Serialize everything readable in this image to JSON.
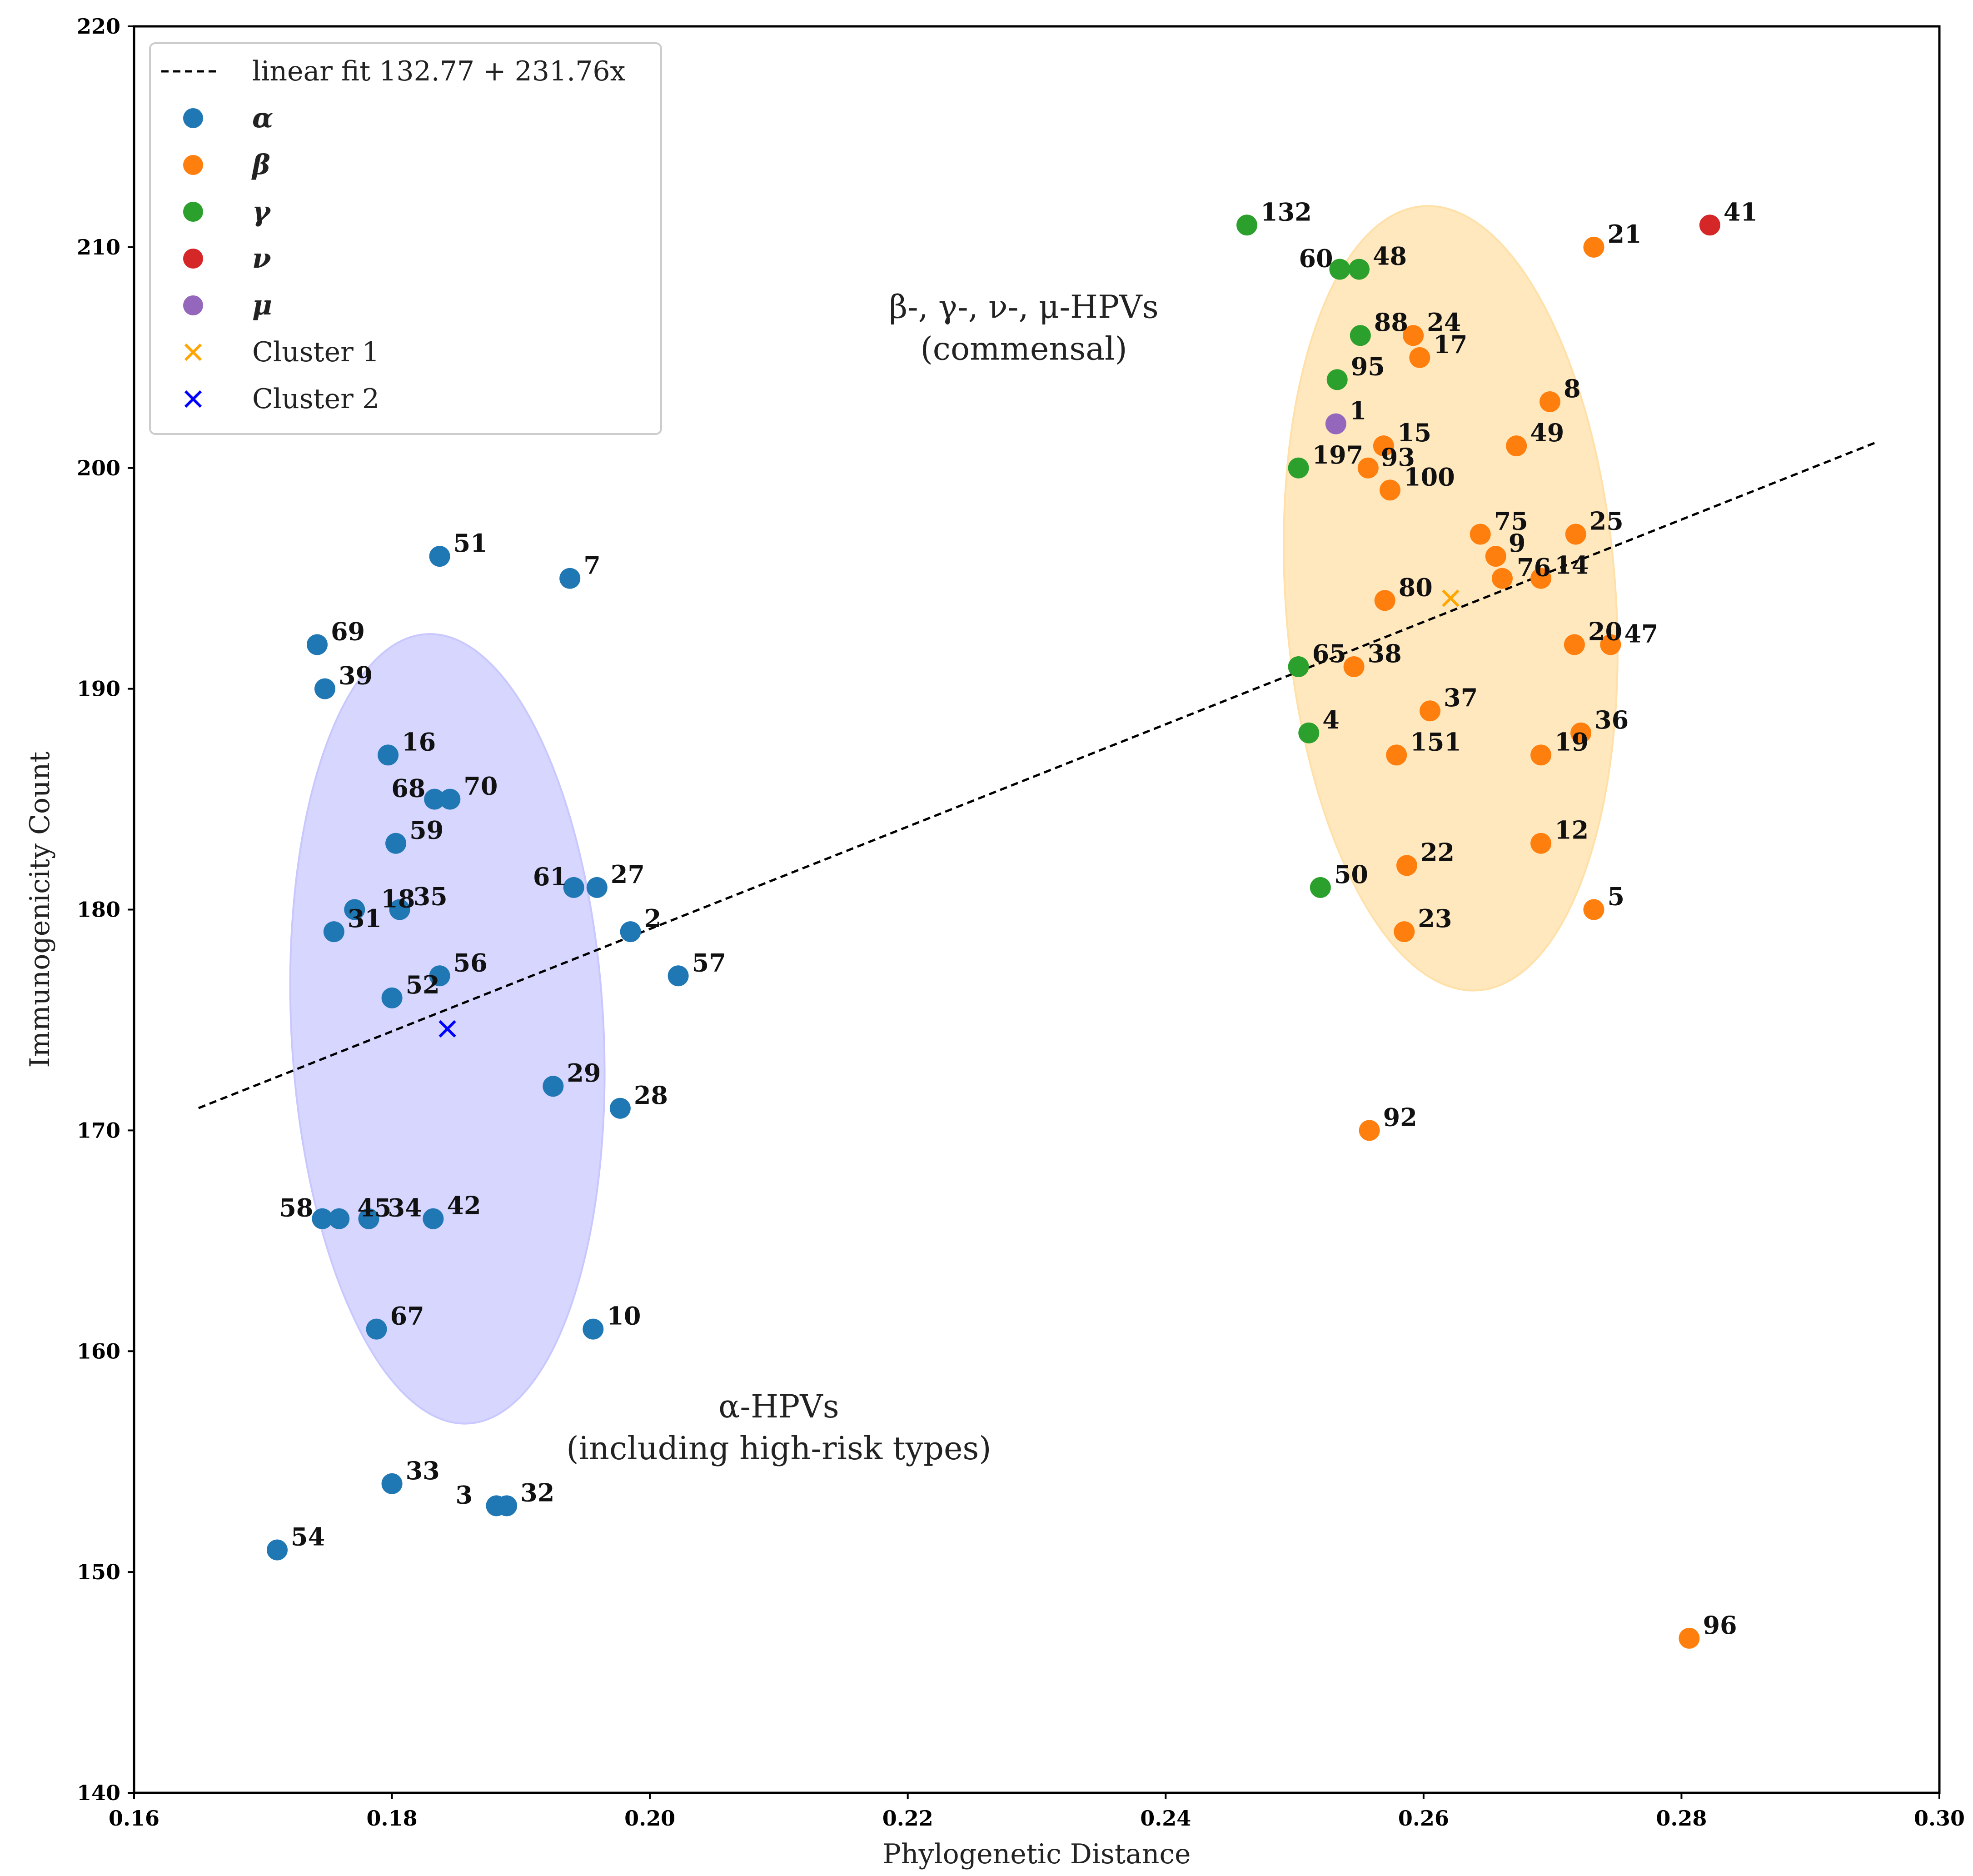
{
  "chart_data": {
    "type": "scatter",
    "xlabel": "Phylogenetic Distance",
    "ylabel": "Immunogenicity Count",
    "xlim": [
      0.16,
      0.3
    ],
    "ylim": [
      140,
      220
    ],
    "xticks": [
      "0.16",
      "0.18",
      "0.20",
      "0.22",
      "0.24",
      "0.26",
      "0.28",
      "0.30"
    ],
    "yticks": [
      "140",
      "150",
      "160",
      "170",
      "180",
      "190",
      "200",
      "210",
      "220"
    ],
    "fit_line": {
      "label": "linear fit 132.77 + 231.76x",
      "intercept": 132.77,
      "slope": 231.76,
      "x_range": [
        0.165,
        0.295
      ],
      "color": "#000000"
    },
    "series": [
      {
        "name": "α",
        "color": "#1f77b4",
        "points": [
          {
            "label": "51",
            "x": 0.1837,
            "y": 196
          },
          {
            "label": "7",
            "x": 0.1938,
            "y": 195
          },
          {
            "label": "69",
            "x": 0.1742,
            "y": 192
          },
          {
            "label": "39",
            "x": 0.1748,
            "y": 190
          },
          {
            "label": "16",
            "x": 0.1797,
            "y": 187
          },
          {
            "label": "68",
            "x": 0.1833,
            "y": 185
          },
          {
            "label": "70",
            "x": 0.1845,
            "y": 185
          },
          {
            "label": "59",
            "x": 0.1803,
            "y": 183
          },
          {
            "label": "61",
            "x": 0.1941,
            "y": 181
          },
          {
            "label": "27",
            "x": 0.1959,
            "y": 181
          },
          {
            "label": "18",
            "x": 0.1771,
            "y": 180
          },
          {
            "label": "35",
            "x": 0.1806,
            "y": 180
          },
          {
            "label": "31",
            "x": 0.1755,
            "y": 179
          },
          {
            "label": "2",
            "x": 0.1985,
            "y": 179
          },
          {
            "label": "56",
            "x": 0.1837,
            "y": 177
          },
          {
            "label": "57",
            "x": 0.2022,
            "y": 177
          },
          {
            "label": "52",
            "x": 0.18,
            "y": 176
          },
          {
            "label": "29",
            "x": 0.1925,
            "y": 172
          },
          {
            "label": "28",
            "x": 0.1977,
            "y": 171
          },
          {
            "label": "58",
            "x": 0.1746,
            "y": 166
          },
          {
            "label": "45",
            "x": 0.1759,
            "y": 166
          },
          {
            "label": "34",
            "x": 0.1782,
            "y": 166
          },
          {
            "label": "42",
            "x": 0.1832,
            "y": 166
          },
          {
            "label": "67",
            "x": 0.1788,
            "y": 161
          },
          {
            "label": "10",
            "x": 0.1956,
            "y": 161
          },
          {
            "label": "33",
            "x": 0.18,
            "y": 154
          },
          {
            "label": "3",
            "x": 0.1881,
            "y": 153
          },
          {
            "label": "32",
            "x": 0.1889,
            "y": 153
          },
          {
            "label": "54",
            "x": 0.1711,
            "y": 151
          }
        ]
      },
      {
        "name": "β",
        "color": "#ff7f0e",
        "points": [
          {
            "label": "21",
            "x": 0.2732,
            "y": 210
          },
          {
            "label": "24",
            "x": 0.2592,
            "y": 206
          },
          {
            "label": "17",
            "x": 0.2597,
            "y": 205
          },
          {
            "label": "8",
            "x": 0.2698,
            "y": 203
          },
          {
            "label": "49",
            "x": 0.2672,
            "y": 201
          },
          {
            "label": "15",
            "x": 0.2569,
            "y": 201
          },
          {
            "label": "93",
            "x": 0.2557,
            "y": 200
          },
          {
            "label": "100",
            "x": 0.2574,
            "y": 199
          },
          {
            "label": "75",
            "x": 0.2644,
            "y": 197
          },
          {
            "label": "25",
            "x": 0.2718,
            "y": 197
          },
          {
            "label": "9",
            "x": 0.2656,
            "y": 196
          },
          {
            "label": "76",
            "x": 0.2661,
            "y": 195
          },
          {
            "label": "14",
            "x": 0.2691,
            "y": 195
          },
          {
            "label": "80",
            "x": 0.257,
            "y": 194
          },
          {
            "label": "20",
            "x": 0.2717,
            "y": 192
          },
          {
            "label": "47",
            "x": 0.2745,
            "y": 192
          },
          {
            "label": "38",
            "x": 0.2546,
            "y": 191
          },
          {
            "label": "37",
            "x": 0.2605,
            "y": 189
          },
          {
            "label": "36",
            "x": 0.2722,
            "y": 188
          },
          {
            "label": "151",
            "x": 0.2579,
            "y": 187
          },
          {
            "label": "19",
            "x": 0.2691,
            "y": 187
          },
          {
            "label": "12",
            "x": 0.2691,
            "y": 183
          },
          {
            "label": "22",
            "x": 0.2587,
            "y": 182
          },
          {
            "label": "5",
            "x": 0.2732,
            "y": 180
          },
          {
            "label": "23",
            "x": 0.2585,
            "y": 179
          },
          {
            "label": "92",
            "x": 0.2558,
            "y": 170
          },
          {
            "label": "96",
            "x": 0.2806,
            "y": 147
          }
        ]
      },
      {
        "name": "γ",
        "color": "#2ca02c",
        "points": [
          {
            "label": "132",
            "x": 0.2463,
            "y": 211
          },
          {
            "label": "60",
            "x": 0.2535,
            "y": 209
          },
          {
            "label": "48",
            "x": 0.255,
            "y": 209
          },
          {
            "label": "88",
            "x": 0.2551,
            "y": 206
          },
          {
            "label": "95",
            "x": 0.2533,
            "y": 204
          },
          {
            "label": "197",
            "x": 0.2503,
            "y": 200
          },
          {
            "label": "65",
            "x": 0.2503,
            "y": 191
          },
          {
            "label": "4",
            "x": 0.2511,
            "y": 188
          },
          {
            "label": "50",
            "x": 0.252,
            "y": 181
          }
        ]
      },
      {
        "name": "ν",
        "color": "#d62728",
        "points": [
          {
            "label": "41",
            "x": 0.2822,
            "y": 211
          }
        ]
      },
      {
        "name": "μ",
        "color": "#9467bd",
        "points": [
          {
            "label": "1",
            "x": 0.2532,
            "y": 202
          }
        ]
      }
    ],
    "clusters": [
      {
        "name": "Cluster 1",
        "color": "#ffa500",
        "center": [
          0.2621,
          194.1
        ],
        "ellipse": {
          "rx_data": 0.0128,
          "ry_data": 17.8,
          "fill": "#ffe0a8"
        }
      },
      {
        "name": "Cluster 2",
        "color": "#0000ff",
        "center": [
          0.1843,
          174.6
        ],
        "ellipse": {
          "rx_data": 0.0121,
          "ry_data": 17.9,
          "fill": "#c8c8ff"
        }
      }
    ],
    "annotations": [
      {
        "line1": "β-, γ-, ν-, μ-HPVs",
        "line2": "(commensal)",
        "x": 0.229,
        "y": 206.8
      },
      {
        "line1": "α-HPVs",
        "line2": "(including high-risk types)",
        "x": 0.21,
        "y": 157.0
      }
    ],
    "legend": {
      "position": "top-left",
      "items": [
        {
          "kind": "line",
          "label": "linear fit 132.77 + 231.76x",
          "color": "#000000"
        },
        {
          "kind": "dot",
          "label": "α",
          "color": "#1f77b4"
        },
        {
          "kind": "dot",
          "label": "β",
          "color": "#ff7f0e"
        },
        {
          "kind": "dot",
          "label": "γ",
          "color": "#2ca02c"
        },
        {
          "kind": "dot",
          "label": "ν",
          "color": "#d62728"
        },
        {
          "kind": "dot",
          "label": "μ",
          "color": "#9467bd"
        },
        {
          "kind": "cross",
          "label": "Cluster 1",
          "color": "#ffa500"
        },
        {
          "kind": "cross",
          "label": "Cluster 2",
          "color": "#0000ff"
        }
      ]
    }
  }
}
